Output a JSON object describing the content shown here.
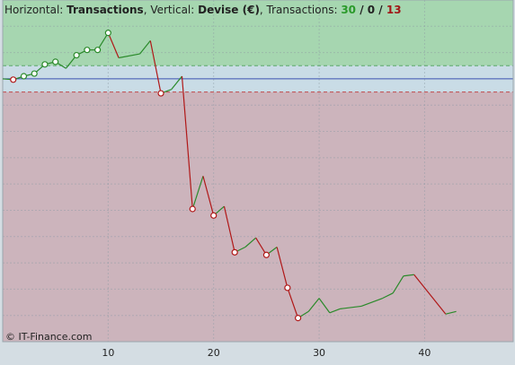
{
  "chart_data": {
    "type": "line",
    "header": [
      {
        "text": "Horizontal: ",
        "style": "normal"
      },
      {
        "text": "Transactions",
        "style": "bold"
      },
      {
        "text": ", Vertical: ",
        "style": "normal"
      },
      {
        "text": "Devise (€)",
        "style": "bold"
      },
      {
        "text": ", Transactions: ",
        "style": "normal"
      },
      {
        "text": "30",
        "style": "green"
      },
      {
        "text": " / ",
        "style": "bold"
      },
      {
        "text": "0",
        "style": "bold"
      },
      {
        "text": " / ",
        "style": "bold"
      },
      {
        "text": "13",
        "style": "red"
      }
    ],
    "footer": "© IT-Finance.com",
    "x": [
      0,
      1,
      2,
      3,
      4,
      5,
      6,
      7,
      8,
      9,
      10,
      11,
      13,
      14,
      15,
      16,
      17,
      18,
      19,
      20,
      21,
      22,
      23,
      24,
      25,
      26,
      27,
      28,
      29,
      30,
      31,
      32,
      34,
      36,
      37,
      38,
      39,
      42,
      43
    ],
    "series": [
      {
        "values": [
          0,
          -0.03,
          0.1,
          0.2,
          0.55,
          0.65,
          0.4,
          0.9,
          1.1,
          1.1,
          1.75,
          0.8,
          0.95,
          1.45,
          -0.55,
          -0.4,
          0.1,
          -4.95,
          -3.7,
          -5.2,
          -4.85,
          -6.6,
          -6.4,
          -6.05,
          -6.7,
          -6.4,
          -7.95,
          -9.1,
          -8.85,
          -8.35,
          -8.9,
          -8.75,
          -8.65,
          -8.35,
          -8.15,
          -7.5,
          -7.45,
          -8.95,
          -8.85
        ],
        "segment_colors": [
          "#2a8a2a",
          "#2a8a2a",
          "#2a8a2a",
          "#2a8a2a",
          "#2a8a2a",
          "#2a8a2a",
          "#2a8a2a",
          "#2a8a2a",
          "#2a8a2a",
          "#2a8a2a",
          "#b01818",
          "#2a8a2a",
          "#2a8a2a",
          "#b01818",
          "#2a8a2a",
          "#2a8a2a",
          "#b01818",
          "#2a8a2a",
          "#b01818",
          "#2a8a2a",
          "#b01818",
          "#2a8a2a",
          "#2a8a2a",
          "#b01818",
          "#2a8a2a",
          "#b01818",
          "#b01818",
          "#2a8a2a",
          "#2a8a2a",
          "#2a8a2a",
          "#2a8a2a",
          "#2a8a2a",
          "#2a8a2a",
          "#2a8a2a",
          "#2a8a2a",
          "#2a8a2a",
          "#b01818",
          "#2a8a2a"
        ],
        "marker_colors": [
          null,
          "#b01818",
          "#2a8a2a",
          "#2a8a2a",
          "#2a8a2a",
          "#2a8a2a",
          null,
          "#2a8a2a",
          "#2a8a2a",
          "#2a8a2a",
          "#2a8a2a",
          null,
          null,
          null,
          "#b01818",
          null,
          null,
          "#b01818",
          null,
          "#b01818",
          null,
          "#b01818",
          null,
          null,
          "#b01818",
          null,
          "#b01818",
          "#b01818",
          null,
          null,
          null,
          null,
          null,
          null,
          null,
          null,
          null,
          null,
          null
        ]
      }
    ],
    "zones": [
      {
        "from": 0.5,
        "to": 3,
        "color": "#a6d6b0",
        "border": "#5aa86a"
      },
      {
        "from": -0.5,
        "to": 0.5,
        "color": "#c9dce6",
        "border": null
      },
      {
        "from": -10,
        "to": -0.5,
        "color": "#ccb4bc",
        "border": "#c04848"
      }
    ],
    "baseline": 0,
    "baseline_color": "#3a4fb0",
    "xlim": [
      0,
      48.4
    ],
    "ylim": [
      -10,
      3
    ],
    "xticks": [
      10,
      20,
      30,
      40
    ],
    "ygrid": [
      -9,
      -8,
      -7,
      -6,
      -5,
      -4,
      -3,
      -2,
      -1,
      1,
      2
    ],
    "grid": true
  }
}
